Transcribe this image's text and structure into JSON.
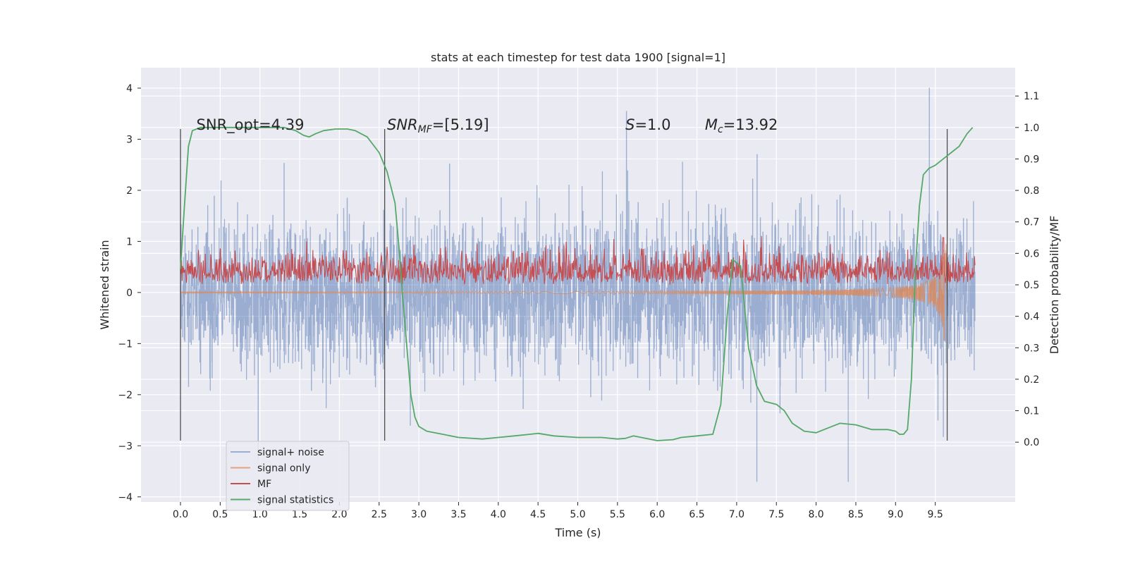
{
  "chart_data": {
    "type": "line",
    "title": "stats at each timestep for test data 1900 [signal=1]",
    "xlabel": "Time (s)",
    "ylabel": "Whitened strain",
    "y2label": "Detection probability/MF",
    "xlim": [
      -0.5,
      10.5
    ],
    "ylim": [
      -4.1,
      4.4
    ],
    "y2lim": [
      -0.19,
      1.19
    ],
    "xticks": [
      "0.0",
      "0.5",
      "1.0",
      "1.5",
      "2.0",
      "2.5",
      "3.0",
      "3.5",
      "4.0",
      "4.5",
      "5.0",
      "5.5",
      "6.0",
      "6.5",
      "7.0",
      "7.5",
      "8.0",
      "8.5",
      "9.0",
      "9.5"
    ],
    "yticks": [
      "4",
      "3",
      "2",
      "1",
      "0",
      "−1",
      "−2",
      "−3",
      "−4"
    ],
    "y2ticks": [
      "1.1",
      "1.0",
      "0.9",
      "0.8",
      "0.7",
      "0.6",
      "0.5",
      "0.4",
      "0.3",
      "0.2",
      "0.1",
      "0.0"
    ],
    "grid": true,
    "legend_position": "lower-left",
    "annotations": [
      {
        "text": "SNR_opt=4.39",
        "x": 0.2
      },
      {
        "text": "SNR",
        "sub": "MF",
        "rest": "=[5.19]",
        "x": 2.6
      },
      {
        "text": "S",
        "rest": "=1.0",
        "x": 5.6
      },
      {
        "text": "M",
        "sub": "c",
        "rest": "=13.92",
        "x": 6.6
      }
    ],
    "vlines": [
      0.0,
      2.57,
      9.65
    ],
    "vline_range": [
      3.2,
      -2.9
    ],
    "series": [
      {
        "name": "signal+ noise",
        "color": "#4c72b0",
        "axis": "left",
        "kind": "noise",
        "x_range": [
          0.0,
          10.0
        ],
        "amplitude": [
          -3.7,
          4.0
        ],
        "typical_band": [
          -1.3,
          1.4
        ]
      },
      {
        "name": "signal only",
        "color": "#dd8452",
        "axis": "left",
        "kind": "chirp",
        "x_range": [
          0.0,
          9.65
        ],
        "peak_amplitude": 0.95,
        "merger_time": 9.65
      },
      {
        "name": "MF",
        "color": "#c44e52",
        "axis": "right",
        "kind": "noise",
        "x_range": [
          0.0,
          10.0
        ],
        "band": [
          0.5,
          0.62
        ],
        "peaks": [
          [
            4.3,
            0.6
          ],
          [
            9.6,
            0.65
          ]
        ]
      },
      {
        "name": "signal statistics",
        "color": "#55a868",
        "axis": "right",
        "x": [
          0.0,
          0.05,
          0.1,
          0.15,
          0.25,
          0.5,
          1.0,
          1.3,
          1.45,
          1.55,
          1.62,
          1.7,
          1.8,
          1.95,
          2.1,
          2.2,
          2.35,
          2.5,
          2.6,
          2.7,
          2.75,
          2.8,
          2.85,
          2.9,
          2.95,
          3.0,
          3.1,
          3.3,
          3.5,
          3.8,
          4.0,
          4.2,
          4.4,
          4.5,
          4.7,
          5.0,
          5.3,
          5.5,
          5.6,
          5.7,
          5.8,
          6.0,
          6.2,
          6.3,
          6.5,
          6.7,
          6.8,
          6.88,
          6.95,
          7.05,
          7.15,
          7.25,
          7.35,
          7.5,
          7.6,
          7.7,
          7.85,
          8.0,
          8.15,
          8.3,
          8.5,
          8.7,
          8.9,
          9.0,
          9.05,
          9.1,
          9.15,
          9.2,
          9.25,
          9.3,
          9.35,
          9.42,
          9.5,
          9.6,
          9.7,
          9.8,
          9.9,
          9.97
        ],
        "y": [
          0.55,
          0.75,
          0.94,
          0.99,
          1.0,
          1.0,
          1.0,
          1.0,
          0.99,
          0.975,
          0.97,
          0.98,
          0.99,
          0.995,
          0.995,
          0.99,
          0.97,
          0.92,
          0.86,
          0.76,
          0.62,
          0.45,
          0.3,
          0.15,
          0.08,
          0.05,
          0.035,
          0.025,
          0.015,
          0.01,
          0.015,
          0.02,
          0.025,
          0.028,
          0.02,
          0.015,
          0.015,
          0.01,
          0.012,
          0.02,
          0.015,
          0.005,
          0.008,
          0.015,
          0.02,
          0.025,
          0.12,
          0.4,
          0.58,
          0.56,
          0.3,
          0.18,
          0.13,
          0.12,
          0.1,
          0.06,
          0.035,
          0.03,
          0.045,
          0.06,
          0.055,
          0.04,
          0.04,
          0.035,
          0.025,
          0.025,
          0.04,
          0.2,
          0.55,
          0.75,
          0.85,
          0.87,
          0.88,
          0.9,
          0.92,
          0.94,
          0.98,
          1.0
        ]
      }
    ]
  }
}
